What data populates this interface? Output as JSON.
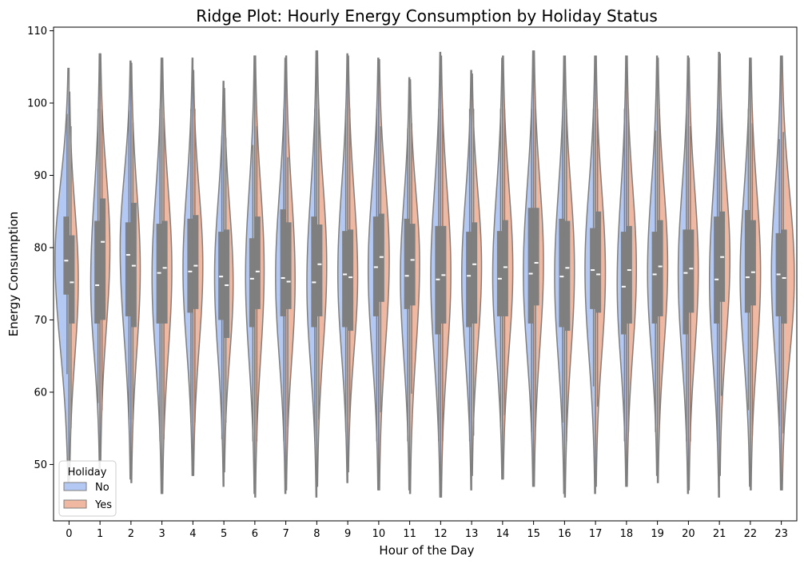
{
  "chart_data": {
    "type": "violin",
    "title": "Ridge Plot: Hourly Energy Consumption by Holiday Status",
    "xlabel": "Hour of the Day",
    "ylabel": "Energy Consumption",
    "categories": [
      "0",
      "1",
      "2",
      "3",
      "4",
      "5",
      "6",
      "7",
      "8",
      "9",
      "10",
      "11",
      "12",
      "13",
      "14",
      "15",
      "16",
      "17",
      "18",
      "19",
      "20",
      "21",
      "22",
      "23"
    ],
    "ylim": [
      42.2,
      110.5
    ],
    "yticks": [
      50,
      60,
      70,
      80,
      90,
      100,
      110
    ],
    "legend": {
      "title": "Holiday",
      "position": "lower-left",
      "entries": [
        "No",
        "Yes"
      ]
    },
    "colors": {
      "No": "#b3c8f3",
      "Yes": "#f0b8a0",
      "outline": "#7f7f7f",
      "box": "#7f7f7f",
      "median": "#ffffff"
    },
    "series": [
      {
        "name": "No",
        "side": "left",
        "median": [
          78.2,
          74.8,
          79.0,
          76.5,
          76.7,
          76.0,
          75.7,
          75.8,
          75.2,
          76.3,
          77.3,
          76.1,
          75.6,
          76.1,
          75.7,
          76.4,
          76.0,
          76.9,
          74.6,
          76.3,
          76.5,
          75.6,
          75.9,
          76.3
        ],
        "q1": [
          73.5,
          69.5,
          70.5,
          69.5,
          71.0,
          70.0,
          69.0,
          70.5,
          69.0,
          69.0,
          70.5,
          71.5,
          68.0,
          69.0,
          70.5,
          69.5,
          69.0,
          71.5,
          68.0,
          69.5,
          68.0,
          69.5,
          71.0,
          70.5
        ],
        "q3": [
          84.3,
          83.7,
          83.5,
          83.3,
          84.0,
          82.2,
          81.3,
          85.3,
          84.3,
          82.3,
          84.3,
          84.0,
          83.0,
          82.2,
          82.3,
          85.5,
          84.0,
          82.7,
          82.2,
          82.2,
          82.5,
          84.3,
          85.2,
          82.0
        ],
        "wmin": [
          62.5,
          58.5,
          56.2,
          53.2,
          55.8,
          53.5,
          53.2,
          53.2,
          53.2,
          54.5,
          53.2,
          53.2,
          53.2,
          53.2,
          55.2,
          54.5,
          55.8,
          60.8,
          53.2,
          54.5,
          53.2,
          53.2,
          57.5,
          55.3
        ],
        "wmax": [
          98.5,
          99.2,
          99.0,
          99.2,
          99.2,
          95.5,
          94.2,
          99.2,
          99.2,
          99.2,
          99.2,
          96.5,
          99.2,
          99.2,
          99.2,
          99.2,
          98.2,
          99.2,
          99.2,
          96.2,
          98.5,
          99.2,
          99.2,
          95.0
        ],
        "min": [
          46.5,
          49.5,
          48.0,
          46.0,
          48.5,
          47.0,
          46.0,
          46.0,
          45.5,
          47.5,
          46.5,
          46.5,
          45.5,
          46.5,
          48.0,
          47.0,
          46.0,
          46.0,
          47.0,
          48.5,
          46.0,
          45.5,
          47.0,
          46.5
        ],
        "max": [
          104.8,
          106.8,
          105.8,
          106.2,
          106.2,
          103.0,
          106.5,
          106.2,
          107.2,
          106.8,
          106.2,
          103.5,
          107.0,
          104.5,
          106.2,
          107.2,
          106.5,
          106.5,
          106.5,
          106.5,
          106.5,
          107.0,
          106.2,
          106.5
        ],
        "mode": [
          78.5,
          75.0,
          80.0,
          76.0,
          77.0,
          76.0,
          76.0,
          76.0,
          75.0,
          76.5,
          77.0,
          76.0,
          76.0,
          76.0,
          76.0,
          76.5,
          76.0,
          77.0,
          75.0,
          76.5,
          76.5,
          75.5,
          76.0,
          76.5
        ],
        "width": [
          0.45,
          0.3,
          0.35,
          0.32,
          0.32,
          0.3,
          0.3,
          0.33,
          0.32,
          0.32,
          0.34,
          0.3,
          0.32,
          0.32,
          0.32,
          0.33,
          0.32,
          0.34,
          0.3,
          0.32,
          0.33,
          0.32,
          0.33,
          0.32
        ]
      },
      {
        "name": "Yes",
        "side": "right",
        "median": [
          75.2,
          80.8,
          77.5,
          77.2,
          77.5,
          74.8,
          76.7,
          75.3,
          77.7,
          75.9,
          78.7,
          78.3,
          76.2,
          77.7,
          77.3,
          77.9,
          77.2,
          76.3,
          76.9,
          77.4,
          77.1,
          78.7,
          76.6,
          75.8
        ],
        "q1": [
          69.5,
          70.0,
          69.0,
          69.5,
          71.5,
          67.5,
          71.5,
          71.5,
          70.5,
          68.5,
          72.5,
          72.0,
          69.5,
          69.5,
          70.5,
          72.0,
          68.5,
          71.0,
          69.5,
          70.5,
          71.0,
          72.5,
          72.0,
          69.5
        ],
        "q3": [
          81.7,
          86.8,
          86.2,
          83.7,
          84.5,
          82.5,
          84.3,
          83.5,
          83.2,
          82.5,
          84.7,
          83.3,
          83.0,
          83.5,
          83.8,
          85.5,
          83.7,
          85.0,
          83.0,
          83.8,
          82.5,
          85.0,
          83.8,
          82.5
        ],
        "wmin": [
          55.0,
          57.5,
          56.2,
          53.5,
          55.8,
          55.8,
          53.2,
          55.2,
          56.2,
          56.2,
          57.2,
          59.8,
          53.2,
          54.0,
          56.8,
          55.2,
          53.2,
          58.0,
          54.5,
          55.5,
          53.2,
          59.5,
          54.0,
          54.3
        ],
        "wmax": [
          96.8,
          99.2,
          97.3,
          98.0,
          99.2,
          95.2,
          96.8,
          92.5,
          99.2,
          99.2,
          96.8,
          97.2,
          99.2,
          99.2,
          99.2,
          99.2,
          99.2,
          99.2,
          99.2,
          99.2,
          96.8,
          99.2,
          97.2,
          96.0
        ],
        "min": [
          48.0,
          50.5,
          47.5,
          46.0,
          48.5,
          49.0,
          45.5,
          46.5,
          47.0,
          49.0,
          46.5,
          46.0,
          45.5,
          48.5,
          48.0,
          47.0,
          45.5,
          47.0,
          47.0,
          47.5,
          46.5,
          48.5,
          46.5,
          46.5
        ],
        "max": [
          101.5,
          106.8,
          105.5,
          106.2,
          104.5,
          102.0,
          106.5,
          106.5,
          107.2,
          106.5,
          106.0,
          103.2,
          106.5,
          104.0,
          106.5,
          107.2,
          106.5,
          106.5,
          106.5,
          106.2,
          106.2,
          106.8,
          106.2,
          106.5
        ],
        "mode": [
          75.5,
          80.0,
          77.0,
          77.0,
          77.5,
          75.0,
          77.0,
          75.5,
          77.5,
          76.0,
          78.5,
          78.0,
          76.5,
          77.5,
          77.0,
          78.0,
          77.0,
          76.5,
          77.0,
          77.5,
          77.0,
          78.5,
          76.5,
          76.0
        ],
        "width": [
          0.3,
          0.32,
          0.3,
          0.32,
          0.32,
          0.3,
          0.3,
          0.3,
          0.32,
          0.32,
          0.34,
          0.32,
          0.33,
          0.32,
          0.33,
          0.32,
          0.32,
          0.32,
          0.32,
          0.33,
          0.32,
          0.34,
          0.33,
          0.42
        ]
      }
    ]
  }
}
